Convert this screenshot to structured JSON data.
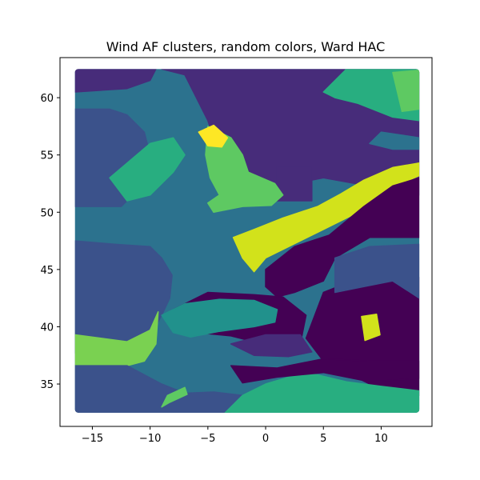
{
  "chart_data": {
    "type": "heatmap",
    "title": "Wind AF clusters, random colors, Ward HAC",
    "xlabel": "",
    "ylabel": "",
    "xlim": [
      -17.8,
      14.4
    ],
    "ylim": [
      31.3,
      63.5
    ],
    "data_extent": {
      "x": [
        -16.5,
        13.3
      ],
      "y": [
        32.5,
        62.5
      ]
    },
    "x_ticks": [
      -15,
      -10,
      -5,
      0,
      5,
      10
    ],
    "x_tick_labels": [
      "−15",
      "−10",
      "−5",
      "0",
      "5",
      "10"
    ],
    "y_ticks": [
      35,
      40,
      45,
      50,
      55,
      60
    ],
    "y_tick_labels": [
      "35",
      "40",
      "45",
      "50",
      "55",
      "60"
    ],
    "grid": false,
    "colors": {
      "c0": "#440154",
      "c1": "#472c7a",
      "c2": "#3b528b",
      "c3": "#2c728e",
      "c4": "#21918c",
      "c5": "#28ae80",
      "c6": "#5ec962",
      "c7": "#7ad151",
      "c8": "#d2e21b",
      "c9": "#fde725"
    },
    "regions": [
      {
        "cluster": "c3",
        "polygon": [
          [
            -16.5,
            62.5
          ],
          [
            13.3,
            62.5
          ],
          [
            13.3,
            32.5
          ],
          [
            -16.5,
            32.5
          ]
        ]
      },
      {
        "cluster": "c1",
        "polygon": [
          [
            -9,
            62.5
          ],
          [
            13.3,
            62.5
          ],
          [
            13.3,
            51.5
          ],
          [
            5,
            53
          ],
          [
            0,
            52
          ],
          [
            -2,
            53.5
          ],
          [
            -4,
            55
          ],
          [
            -5,
            58
          ],
          [
            -6,
            60
          ],
          [
            -7,
            62
          ]
        ]
      },
      {
        "cluster": "c1",
        "polygon": [
          [
            1,
            54
          ],
          [
            4,
            54
          ],
          [
            4,
            51
          ],
          [
            1,
            51
          ]
        ]
      },
      {
        "cluster": "c2",
        "polygon": [
          [
            -16.5,
            50.5
          ],
          [
            -12.5,
            50.5
          ],
          [
            -10.5,
            52.5
          ],
          [
            -10,
            55
          ],
          [
            -10.5,
            57
          ],
          [
            -12,
            58.5
          ],
          [
            -13.5,
            59
          ],
          [
            -16.5,
            59
          ]
        ]
      },
      {
        "cluster": "c5",
        "polygon": [
          [
            -13.5,
            53
          ],
          [
            -10,
            56
          ],
          [
            -8,
            56.5
          ],
          [
            -7,
            55
          ],
          [
            -8,
            53.5
          ],
          [
            -10,
            51.5
          ],
          [
            -12,
            51
          ]
        ]
      },
      {
        "cluster": "c6",
        "polygon": [
          [
            -5,
            57.5
          ],
          [
            -3,
            56.5
          ],
          [
            -2,
            55
          ],
          [
            -1.5,
            53.5
          ],
          [
            0.8,
            52.5
          ],
          [
            1.5,
            51.5
          ],
          [
            0.5,
            50.6
          ],
          [
            -2,
            50.5
          ],
          [
            -4.5,
            50
          ],
          [
            -5,
            50.8
          ],
          [
            -4,
            51.5
          ],
          [
            -4.8,
            53
          ],
          [
            -5.2,
            55
          ]
        ]
      },
      {
        "cluster": "c9",
        "polygon": [
          [
            -5.8,
            57
          ],
          [
            -4.5,
            57.6
          ],
          [
            -3.3,
            56.5
          ],
          [
            -3.8,
            55.7
          ],
          [
            -5,
            55.8
          ]
        ]
      },
      {
        "cluster": "c8",
        "polygon": [
          [
            -2.8,
            47.8
          ],
          [
            -1,
            48.5
          ],
          [
            1.5,
            49.5
          ],
          [
            4.5,
            50.5
          ],
          [
            6.5,
            51.6
          ],
          [
            8.5,
            52.8
          ],
          [
            11,
            53.9
          ],
          [
            13.3,
            54.3
          ],
          [
            13.3,
            53.2
          ],
          [
            11,
            52.2
          ],
          [
            8,
            50
          ],
          [
            5,
            48.5
          ],
          [
            2,
            47
          ],
          [
            0,
            46
          ],
          [
            -1,
            44.8
          ],
          [
            -2,
            46
          ]
        ]
      },
      {
        "cluster": "c0",
        "polygon": [
          [
            0,
            45
          ],
          [
            2.5,
            47
          ],
          [
            5.5,
            48
          ],
          [
            8.5,
            50.5
          ],
          [
            11,
            52.3
          ],
          [
            13.3,
            53
          ],
          [
            13.3,
            47.8
          ],
          [
            9,
            47.8
          ],
          [
            6,
            46
          ],
          [
            5,
            44
          ],
          [
            2.5,
            43
          ],
          [
            1,
            42.6
          ],
          [
            0,
            43.5
          ]
        ]
      },
      {
        "cluster": "c0",
        "polygon": [
          [
            -8,
            41.5
          ],
          [
            -5,
            43
          ],
          [
            -1,
            42.8
          ],
          [
            1.5,
            42.6
          ],
          [
            3.5,
            41
          ],
          [
            3,
            38.5
          ],
          [
            1,
            38.8
          ],
          [
            -1,
            38.7
          ],
          [
            -3,
            39.2
          ],
          [
            -6,
            39.5
          ],
          [
            -8,
            40
          ]
        ]
      },
      {
        "cluster": "c0",
        "polygon": [
          [
            5,
            43
          ],
          [
            8,
            44.2
          ],
          [
            11,
            44
          ],
          [
            13.3,
            44.3
          ],
          [
            13.3,
            34
          ],
          [
            9,
            35
          ],
          [
            5,
            37
          ],
          [
            3.5,
            39
          ]
        ]
      },
      {
        "cluster": "c2",
        "polygon": [
          [
            -16.5,
            37.7
          ],
          [
            -12,
            38.4
          ],
          [
            -10,
            39.2
          ],
          [
            -9,
            41
          ],
          [
            -8.3,
            42.5
          ],
          [
            -8.1,
            44.5
          ],
          [
            -9,
            46
          ],
          [
            -10,
            47
          ],
          [
            -13,
            47.2
          ],
          [
            -16.5,
            47.5
          ]
        ]
      },
      {
        "cluster": "c2",
        "polygon": [
          [
            6,
            46
          ],
          [
            9,
            47
          ],
          [
            13.3,
            47.2
          ],
          [
            13.3,
            42.5
          ],
          [
            11,
            44
          ],
          [
            8.5,
            43.5
          ],
          [
            6,
            43
          ]
        ]
      },
      {
        "cluster": "c7",
        "polygon": [
          [
            -16.5,
            39.3
          ],
          [
            -12,
            38.7
          ],
          [
            -10,
            39.7
          ],
          [
            -9.3,
            41.3
          ],
          [
            -9.5,
            38.5
          ],
          [
            -10.5,
            37
          ],
          [
            -12,
            36.6
          ],
          [
            -16.5,
            36.6
          ]
        ]
      },
      {
        "cluster": "c2",
        "polygon": [
          [
            -16.5,
            36.6
          ],
          [
            -12,
            36.6
          ],
          [
            -9,
            35
          ],
          [
            -7,
            34.2
          ],
          [
            -4.5,
            34.3
          ],
          [
            -2,
            34
          ],
          [
            -3,
            32.5
          ],
          [
            -16.5,
            32.5
          ]
        ]
      },
      {
        "cluster": "c5",
        "polygon": [
          [
            -3.5,
            32.5
          ],
          [
            3,
            32.5
          ],
          [
            13.3,
            32.5
          ],
          [
            13.3,
            34.4
          ],
          [
            10,
            34.8
          ],
          [
            7,
            35.2
          ],
          [
            4.5,
            35.8
          ],
          [
            3,
            35.9
          ],
          [
            0,
            35
          ],
          [
            -2,
            34
          ]
        ]
      },
      {
        "cluster": "c0",
        "polygon": [
          [
            -3,
            36.6
          ],
          [
            1,
            36.4
          ],
          [
            5,
            37.2
          ],
          [
            9,
            37
          ],
          [
            13.3,
            37
          ],
          [
            13.3,
            35.5
          ],
          [
            9,
            35.2
          ],
          [
            5,
            36
          ],
          [
            1,
            35.6
          ],
          [
            -2,
            35.1
          ]
        ]
      },
      {
        "cluster": "c6",
        "polygon": [
          [
            -9,
            33
          ],
          [
            -8.5,
            34
          ],
          [
            -7,
            34.7
          ],
          [
            -6.8,
            34.1
          ],
          [
            -8.3,
            33.4
          ]
        ]
      },
      {
        "cluster": "c8",
        "polygon": [
          [
            8.3,
            40.9
          ],
          [
            9.6,
            41.1
          ],
          [
            9.9,
            39.3
          ],
          [
            8.6,
            38.8
          ]
        ]
      },
      {
        "cluster": "c5",
        "polygon": [
          [
            7,
            62.5
          ],
          [
            13.3,
            62.5
          ],
          [
            13.3,
            58
          ],
          [
            11,
            58.3
          ],
          [
            8,
            59.5
          ],
          [
            6,
            60
          ],
          [
            5,
            60.5
          ]
        ]
      },
      {
        "cluster": "c6",
        "polygon": [
          [
            11,
            62.2
          ],
          [
            13.3,
            62.4
          ],
          [
            13.3,
            59
          ],
          [
            11.8,
            58.8
          ]
        ]
      },
      {
        "cluster": "c3",
        "polygon": [
          [
            10,
            57
          ],
          [
            12,
            56.7
          ],
          [
            13.3,
            56.5
          ],
          [
            13.3,
            55.5
          ],
          [
            11,
            55.5
          ],
          [
            9,
            56
          ]
        ]
      },
      {
        "cluster": "c4",
        "polygon": [
          [
            -9,
            41
          ],
          [
            -7,
            42
          ],
          [
            -4,
            42.4
          ],
          [
            -1,
            42.3
          ],
          [
            1,
            41.5
          ],
          [
            0.8,
            40.4
          ],
          [
            -1,
            40
          ],
          [
            -4,
            39.6
          ],
          [
            -6.5,
            39.1
          ],
          [
            -8,
            39.5
          ]
        ]
      },
      {
        "cluster": "c1",
        "polygon": [
          [
            -3,
            38.5
          ],
          [
            0,
            39.3
          ],
          [
            3,
            39.3
          ],
          [
            4,
            37.8
          ],
          [
            2,
            37.4
          ],
          [
            -1,
            37.5
          ]
        ]
      },
      {
        "cluster": "c1",
        "polygon": [
          [
            -16.5,
            62.5
          ],
          [
            -9.5,
            62.5
          ],
          [
            -10,
            61.5
          ],
          [
            -12,
            60.8
          ],
          [
            -16.5,
            60.5
          ]
        ]
      }
    ]
  }
}
